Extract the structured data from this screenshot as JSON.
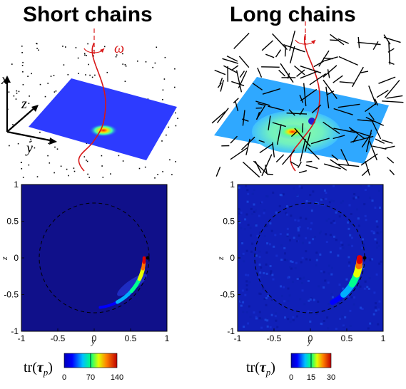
{
  "panels": {
    "left": {
      "title": "Short chains"
    },
    "right": {
      "title": "Long chains"
    }
  },
  "schematic": {
    "omega_label": "ω",
    "axis_x": "x",
    "axis_y": "y",
    "axis_z": "z"
  },
  "plots": {
    "x_ticks": [
      "-1",
      "-0.5",
      "0",
      "0.5",
      "1"
    ],
    "y_ticks": [
      "1",
      "0.5",
      "0",
      "-0.5",
      "-1"
    ],
    "xlabel": "y",
    "ylabel": "z"
  },
  "colorbars": {
    "label_text": "tr(",
    "label_symbol": "τ",
    "label_sub": "p",
    "label_close": ")",
    "left": {
      "ticks": [
        "0",
        "70",
        "140"
      ]
    },
    "right": {
      "ticks": [
        "0",
        "15",
        "30"
      ]
    }
  },
  "chart_data": [
    {
      "type": "heatmap",
      "panel": "Short chains",
      "xlabel": "y",
      "ylabel": "z",
      "xlim": [
        -1,
        1
      ],
      "ylim": [
        -1,
        1
      ],
      "colorbar_range": [
        0,
        140
      ],
      "colorbar_ticks": [
        0,
        70,
        140
      ],
      "reference_circle_radius": 0.75,
      "particle_position": [
        0.75,
        0
      ]
    },
    {
      "type": "heatmap",
      "panel": "Long chains",
      "xlabel": "y",
      "ylabel": "z",
      "xlim": [
        -1,
        1
      ],
      "ylim": [
        -1,
        1
      ],
      "colorbar_range": [
        0,
        30
      ],
      "colorbar_ticks": [
        0,
        15,
        30
      ],
      "reference_circle_radius": 0.75,
      "particle_position": [
        0.75,
        0
      ]
    }
  ]
}
